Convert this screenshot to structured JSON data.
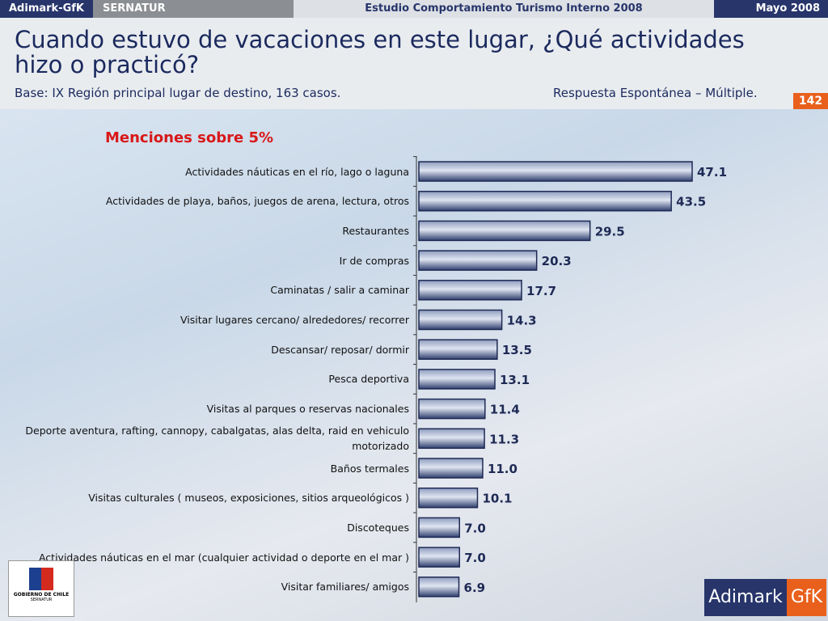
{
  "header": {
    "brand": "Adimark-GfK",
    "client": "SERNATUR",
    "study": "Estudio Comportamiento Turismo Interno 2008",
    "date": "Mayo 2008",
    "page": "142"
  },
  "chart_data": {
    "type": "hbar",
    "title": "Cuando estuvo de vacaciones en este lugar, ¿Qué actividades hizo o practicó?",
    "subtitle": "Base: IX Región principal lugar de destino, 163 casos.",
    "note": "Respuesta Espontánea – Múltiple.",
    "annotation": "Menciones sobre 5%",
    "categories": [
      "Actividades náuticas en el río, lago o laguna",
      "Actividades de playa, baños, juegos de arena, lectura, otros",
      "Restaurantes",
      "Ir de compras",
      "Caminatas / salir a caminar",
      "Visitar lugares cercano/ alrededores/ recorrer",
      "Descansar/ reposar/ dormir",
      "Pesca deportiva",
      "Visitas al parques o reservas nacionales",
      "Deporte aventura, rafting, cannopy, cabalgatas, alas delta, raid en vehiculo motorizado",
      "Baños termales",
      "Visitas culturales ( museos, exposiciones, sitios arqueológicos )",
      "Discoteques",
      "Actividades náuticas en el mar (cualquier actividad o deporte en el mar )",
      "Visitar familiares/ amigos"
    ],
    "values": [
      47.1,
      43.5,
      29.5,
      20.3,
      17.7,
      14.3,
      13.5,
      13.1,
      11.4,
      11.3,
      11.0,
      10.1,
      7.0,
      7.0,
      6.9
    ],
    "value_labels": [
      "47.1",
      "43.5",
      "29.5",
      "20.3",
      "17.7",
      "14.3",
      "13.5",
      "13.1",
      "11.4",
      "11.3",
      "11.0",
      "10.1",
      "7.0",
      "7.0",
      "6.9"
    ],
    "color": "#3c4f7e"
  },
  "logos": {
    "left": "GOBIERNO DE CHILE",
    "left_sub": "SERNATUR",
    "right_a": "Adimark",
    "right_b": "GfK"
  }
}
